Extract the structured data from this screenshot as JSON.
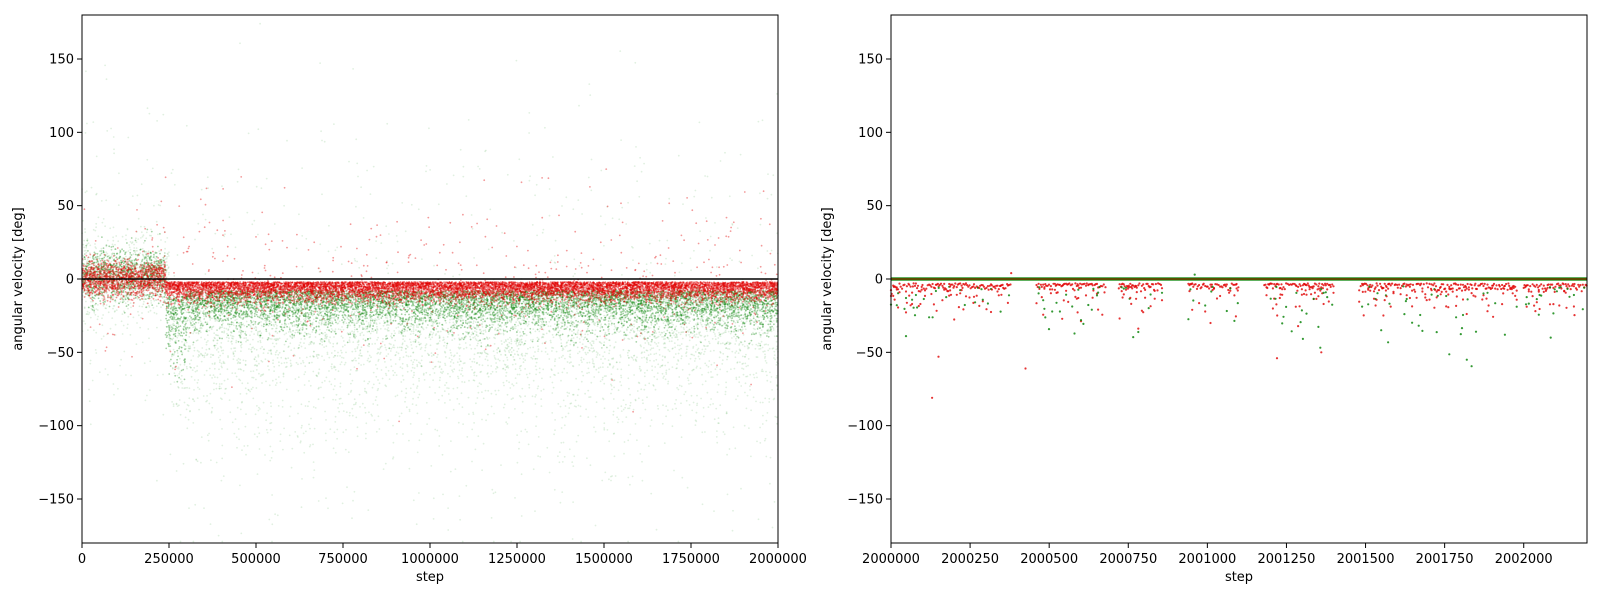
{
  "colors": {
    "series_a": "#e00000",
    "series_b": "#008000",
    "zero_line": "#000000",
    "overlap": "#7a3a00"
  },
  "chart_data": [
    {
      "type": "scatter",
      "title": "",
      "xlabel": "step",
      "ylabel": "angular velocity [deg]",
      "xlim": [
        0,
        2000000
      ],
      "ylim": [
        -180,
        180
      ],
      "xticks": [
        0,
        250000,
        500000,
        750000,
        1000000,
        1250000,
        1500000,
        1750000,
        2000000
      ],
      "xtick_labels": [
        "0",
        "250000",
        "500000",
        "750000",
        "1000000",
        "1250000",
        "1500000",
        "1750000",
        "2000000"
      ],
      "yticks": [
        -150,
        -100,
        -50,
        0,
        50,
        100,
        150
      ],
      "ytick_labels": [
        "−150",
        "−100",
        "−50",
        "0",
        "50",
        "100",
        "150"
      ],
      "grid": false,
      "series": [
        {
          "color": "#e00000",
          "description_points": [
            [
              0,
              0
            ],
            [
              125000,
              2
            ],
            [
              250000,
              -8
            ],
            [
              500000,
              -7
            ],
            [
              1000000,
              -7
            ],
            [
              1500000,
              -8
            ],
            [
              2000000,
              -6
            ]
          ]
        },
        {
          "color": "#008000",
          "description_points": [
            [
              0,
              -2
            ],
            [
              125000,
              5
            ],
            [
              250000,
              -30
            ],
            [
              500000,
              -20
            ],
            [
              1000000,
              -25
            ],
            [
              1500000,
              -30
            ],
            [
              2000000,
              -35
            ]
          ]
        }
      ]
    },
    {
      "type": "scatter",
      "title": "",
      "xlabel": "step",
      "ylabel": "angular velocity [deg]",
      "xlim": [
        2000000,
        2002200
      ],
      "ylim": [
        -180,
        180
      ],
      "xticks": [
        2000000,
        2000250,
        2000500,
        2000750,
        2001000,
        2001250,
        2001500,
        2001750,
        2002000
      ],
      "xtick_labels": [
        "2000000",
        "2000250",
        "2000500",
        "2000750",
        "2001000",
        "2001250",
        "2001500",
        "2001750",
        "2002000"
      ],
      "yticks": [
        -150,
        -100,
        -50,
        0,
        50,
        100,
        150
      ],
      "ytick_labels": [
        "−150",
        "−100",
        "−50",
        "0",
        "50",
        "100",
        "150"
      ],
      "grid": false,
      "series": [
        {
          "color": "#e00000",
          "description_points": [
            [
              2000000,
              0
            ],
            [
              2000100,
              -10
            ],
            [
              2000500,
              -6
            ],
            [
              2001000,
              -8
            ],
            [
              2001300,
              -15
            ],
            [
              2001600,
              -6
            ],
            [
              2002000,
              -8
            ]
          ]
        },
        {
          "color": "#008000",
          "description_points": [
            [
              2000000,
              0
            ],
            [
              2000120,
              -25
            ],
            [
              2000520,
              -20
            ],
            [
              2000980,
              -20
            ],
            [
              2001300,
              -25
            ],
            [
              2001560,
              -25
            ],
            [
              2001980,
              -12
            ]
          ]
        }
      ]
    }
  ]
}
